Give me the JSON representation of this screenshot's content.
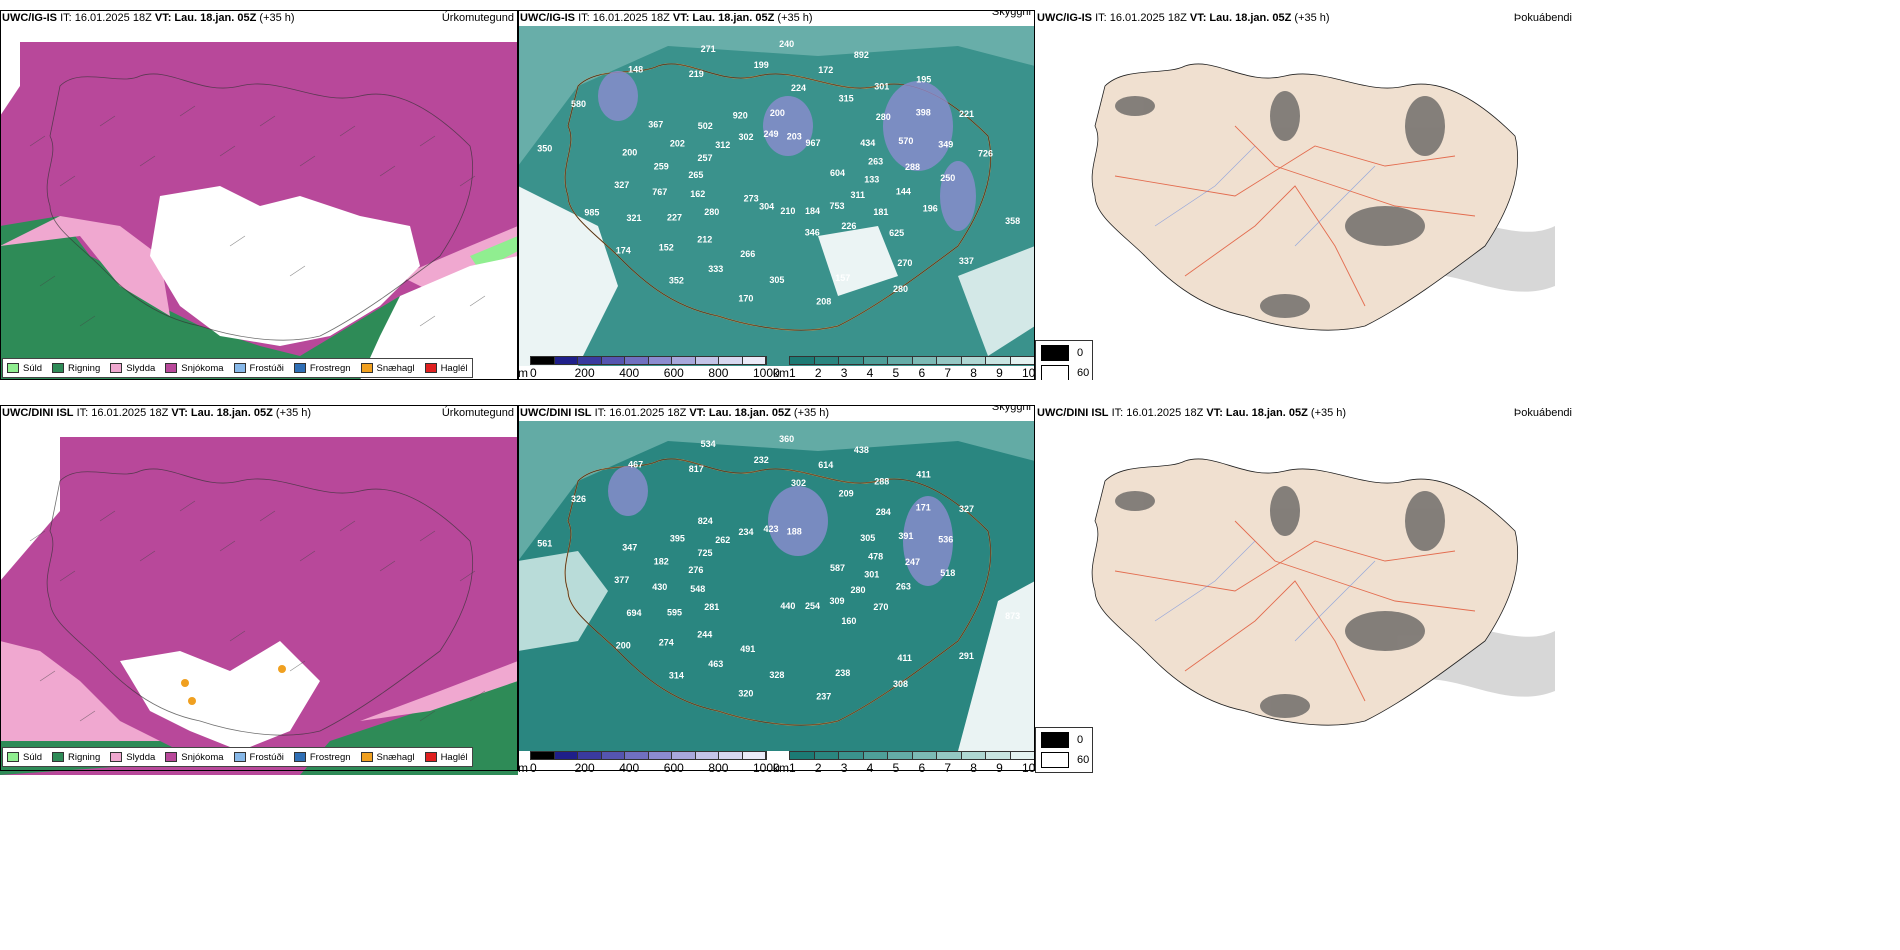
{
  "rows": [
    {
      "model": "UWC/IG-IS",
      "it": "IT: 16.01.2025 18Z",
      "vt": "VT: Lau. 18.jan. 05Z",
      "lead": "(+35 h)",
      "precip_title": "Úrkomutegund",
      "cloud_title": "Skyggni",
      "fog_title": "Þokuábendi",
      "cloud_labels": [
        "604",
        "280",
        "224",
        "270",
        "350",
        "434",
        "266",
        "219",
        "358",
        "162",
        "315",
        "157",
        "580",
        "263",
        "212",
        "199",
        "337",
        "265",
        "280",
        "305",
        "148",
        "133",
        "227",
        "172",
        "280",
        "257",
        "570",
        "333",
        "271",
        "311",
        "767",
        "301",
        "208",
        "312",
        "288",
        "152",
        "240",
        "753",
        "259",
        "398",
        "170",
        "302",
        "144",
        "321",
        "892",
        "184",
        "202",
        "349",
        "352",
        "249",
        "181",
        "327",
        "195",
        "210",
        "502",
        "250",
        "174",
        "203",
        "226",
        "200",
        "221",
        "304",
        "920",
        "196",
        "985",
        "967",
        "346",
        "367",
        "726",
        "273",
        "200",
        "625"
      ]
    },
    {
      "model": "UWC/DINI ISL",
      "it": "IT: 16.01.2025 18Z",
      "vt": "VT: Lau. 18.jan. 05Z",
      "lead": "(+35 h)",
      "precip_title": "Úrkomutegund",
      "cloud_title": "Skyggni",
      "fog_title": "Þokuábendi",
      "cloud_labels": [
        "587",
        "281",
        "302",
        "411",
        "561",
        "305",
        "491",
        "817",
        "873",
        "548",
        "209",
        "238",
        "326",
        "478",
        "244",
        "232",
        "291",
        "276",
        "284",
        "328",
        "467",
        "301",
        "595",
        "614",
        "308",
        "725",
        "391",
        "463",
        "534",
        "280",
        "430",
        "288",
        "237",
        "262",
        "247",
        "274",
        "360",
        "309",
        "182",
        "171",
        "320",
        "234",
        "263",
        "694",
        "438",
        "254",
        "395",
        "536",
        "314",
        "423",
        "270",
        "377",
        "411",
        "440",
        "824",
        "518",
        "200",
        "188",
        "160",
        "347",
        "327"
      ]
    }
  ],
  "precip_legend": [
    {
      "label": "Súld",
      "color": "#90ee90"
    },
    {
      "label": "Rigning",
      "color": "#2e8b57"
    },
    {
      "label": "Slydda",
      "color": "#f0a8d0"
    },
    {
      "label": "Snjókoma",
      "color": "#b8489a"
    },
    {
      "label": "Frostúði",
      "color": "#87b8e8"
    },
    {
      "label": "Frostregn",
      "color": "#2f6fb5"
    },
    {
      "label": "Snæhagl",
      "color": "#f0a020"
    },
    {
      "label": "Haglél",
      "color": "#e02020"
    }
  ],
  "cloud_base_bar": {
    "unit": "m",
    "ticks": [
      "0",
      "200",
      "400",
      "600",
      "800",
      "1000"
    ],
    "colors": [
      "#000000",
      "#1f1f8a",
      "#3a3a9f",
      "#5555b0",
      "#7070c0",
      "#8c8cd0",
      "#a8a8dc",
      "#c4c4e8",
      "#d8d8f0",
      "#ebebf8"
    ]
  },
  "visibility_bar": {
    "unit": "km",
    "ticks": [
      "1",
      "2",
      "3",
      "4",
      "5",
      "6",
      "7",
      "8",
      "9",
      "10"
    ],
    "colors": [
      "#1c7a74",
      "#2a8680",
      "#3a928c",
      "#4e9f99",
      "#64aca7",
      "#7cbab5",
      "#95c8c4",
      "#afd7d3",
      "#c9e5e2",
      "#e4f2f1"
    ]
  },
  "fog_legend": [
    "0",
    "60"
  ]
}
